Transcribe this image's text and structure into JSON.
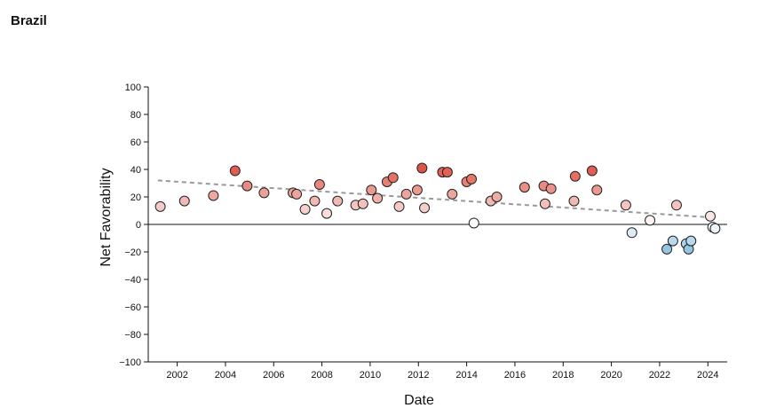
{
  "title": "Brazil",
  "chart_data": {
    "type": "scatter",
    "title": "Brazil",
    "xlabel": "Date",
    "ylabel": "Net Favorability",
    "xlim": [
      2000.8,
      2024.8
    ],
    "ylim": [
      -100,
      100
    ],
    "x_ticks": [
      2002,
      2004,
      2006,
      2008,
      2010,
      2012,
      2014,
      2016,
      2018,
      2020,
      2022,
      2024
    ],
    "y_ticks": [
      100,
      80,
      60,
      40,
      20,
      0,
      -20,
      -40,
      -60,
      -80,
      -100
    ],
    "y_tick_labels": [
      "100",
      "80",
      "60",
      "40",
      "20",
      "0",
      "−20",
      "−40",
      "−60",
      "−80",
      "−100"
    ],
    "zero_line": true,
    "grid": false,
    "legend": "none",
    "trendline": {
      "style": "dashed",
      "color": "#999999",
      "x": [
        2001.2,
        2024.2
      ],
      "y": [
        32,
        5
      ]
    },
    "color_scale": {
      "positive": "#d7301f",
      "zero": "#ffffff",
      "negative": "#6baed6"
    },
    "points": [
      {
        "x": 2001.3,
        "y": 13
      },
      {
        "x": 2002.3,
        "y": 17
      },
      {
        "x": 2003.5,
        "y": 21
      },
      {
        "x": 2004.4,
        "y": 39
      },
      {
        "x": 2004.9,
        "y": 28
      },
      {
        "x": 2005.6,
        "y": 23
      },
      {
        "x": 2006.8,
        "y": 23
      },
      {
        "x": 2006.95,
        "y": 22
      },
      {
        "x": 2007.3,
        "y": 11
      },
      {
        "x": 2007.7,
        "y": 17
      },
      {
        "x": 2007.9,
        "y": 29
      },
      {
        "x": 2008.2,
        "y": 8
      },
      {
        "x": 2008.65,
        "y": 17
      },
      {
        "x": 2009.4,
        "y": 14
      },
      {
        "x": 2009.7,
        "y": 15
      },
      {
        "x": 2010.05,
        "y": 25
      },
      {
        "x": 2010.3,
        "y": 19
      },
      {
        "x": 2010.7,
        "y": 31
      },
      {
        "x": 2010.95,
        "y": 34
      },
      {
        "x": 2011.2,
        "y": 13
      },
      {
        "x": 2011.5,
        "y": 22
      },
      {
        "x": 2011.95,
        "y": 25
      },
      {
        "x": 2012.15,
        "y": 41
      },
      {
        "x": 2012.25,
        "y": 12
      },
      {
        "x": 2013.0,
        "y": 38
      },
      {
        "x": 2013.2,
        "y": 38
      },
      {
        "x": 2013.4,
        "y": 22
      },
      {
        "x": 2014.0,
        "y": 31
      },
      {
        "x": 2014.2,
        "y": 33
      },
      {
        "x": 2014.3,
        "y": 1
      },
      {
        "x": 2015.0,
        "y": 17
      },
      {
        "x": 2015.25,
        "y": 20
      },
      {
        "x": 2016.4,
        "y": 27
      },
      {
        "x": 2017.2,
        "y": 28
      },
      {
        "x": 2017.25,
        "y": 15
      },
      {
        "x": 2017.5,
        "y": 26
      },
      {
        "x": 2018.45,
        "y": 17
      },
      {
        "x": 2018.5,
        "y": 35
      },
      {
        "x": 2019.2,
        "y": 39
      },
      {
        "x": 2019.4,
        "y": 25
      },
      {
        "x": 2020.6,
        "y": 14
      },
      {
        "x": 2020.85,
        "y": -6
      },
      {
        "x": 2021.6,
        "y": 3
      },
      {
        "x": 2022.3,
        "y": -18
      },
      {
        "x": 2022.55,
        "y": -12
      },
      {
        "x": 2022.7,
        "y": 14
      },
      {
        "x": 2023.1,
        "y": -14
      },
      {
        "x": 2023.2,
        "y": -18
      },
      {
        "x": 2023.3,
        "y": -12
      },
      {
        "x": 2024.1,
        "y": 6
      },
      {
        "x": 2024.2,
        "y": -2
      },
      {
        "x": 2024.3,
        "y": -3
      }
    ]
  }
}
